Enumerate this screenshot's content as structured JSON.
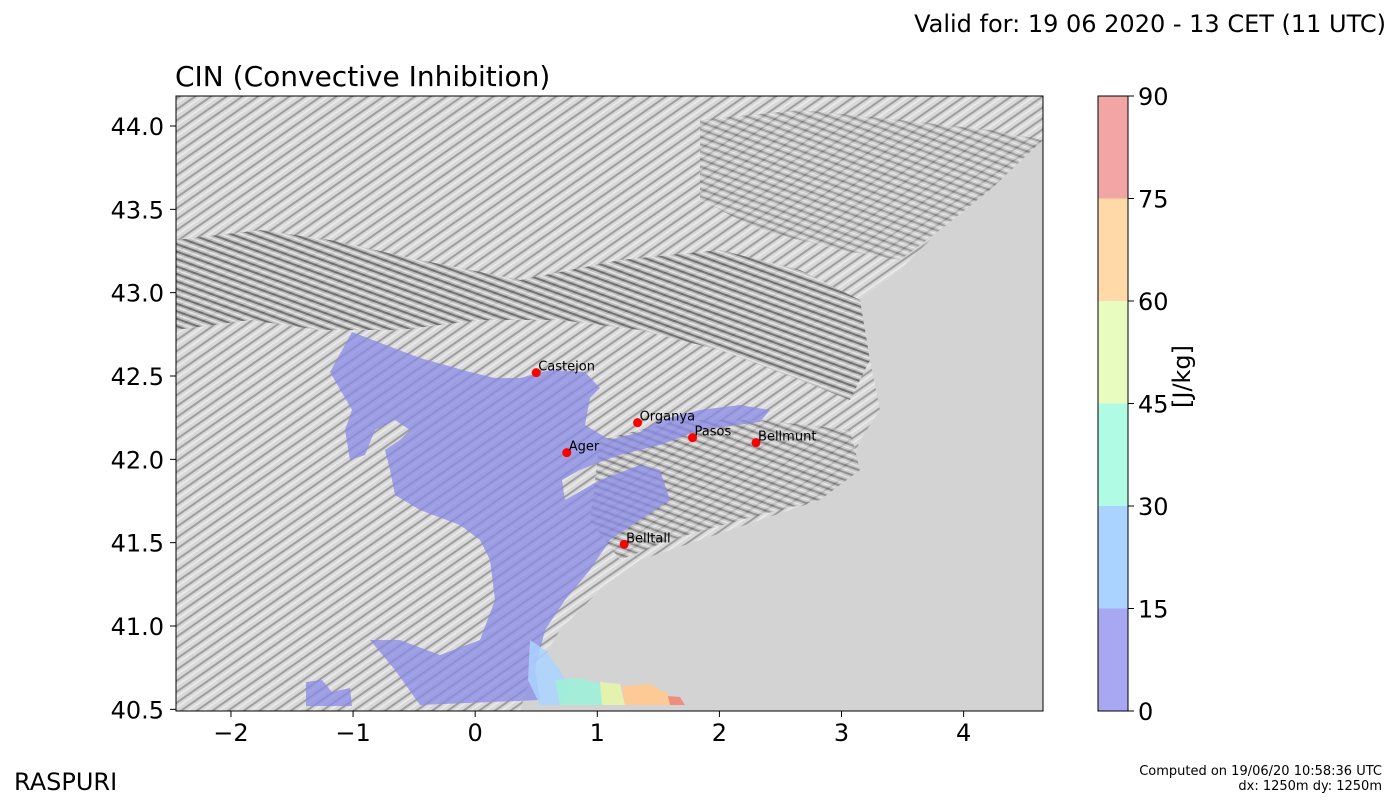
{
  "header": {
    "valid_for": "Valid for: 19 06 2020 - 13 CET (11 UTC)"
  },
  "map": {
    "title": "CIN (Convective Inhibition)",
    "x_ticks": [
      "−2",
      "−1",
      "0",
      "1",
      "2",
      "3",
      "4"
    ],
    "y_ticks": [
      "44.0",
      "43.5",
      "43.0",
      "42.5",
      "42.0",
      "41.5",
      "41.0",
      "40.5"
    ],
    "cities": [
      {
        "name": "Castejon",
        "lon": 0.5,
        "lat": 42.52
      },
      {
        "name": "Organya",
        "lon": 1.33,
        "lat": 42.22
      },
      {
        "name": "Pasos",
        "lon": 1.78,
        "lat": 42.13
      },
      {
        "name": "Bellmunt",
        "lon": 2.3,
        "lat": 42.1
      },
      {
        "name": "Ager",
        "lon": 0.75,
        "lat": 42.04
      },
      {
        "name": "Belltall",
        "lon": 1.22,
        "lat": 41.49
      }
    ],
    "colors": {
      "sea": "#d3d3d3",
      "terrain": "#c9c9c9",
      "cin_low": "#8a8ae8",
      "marker": "#ff0000"
    }
  },
  "colorbar": {
    "ticks": [
      "0",
      "15",
      "30",
      "45",
      "60",
      "75",
      "90"
    ],
    "colors": [
      "#a8a8f2",
      "#aad4ff",
      "#b0fbe4",
      "#e8fcc0",
      "#ffd9a8",
      "#f2a5a5"
    ],
    "units": "[J/kg]"
  },
  "footer": {
    "brand": "RASPURI",
    "computed_on": "Computed on 19/06/20 10:58:36 UTC",
    "resolution": "dx: 1250m dy: 1250m"
  }
}
